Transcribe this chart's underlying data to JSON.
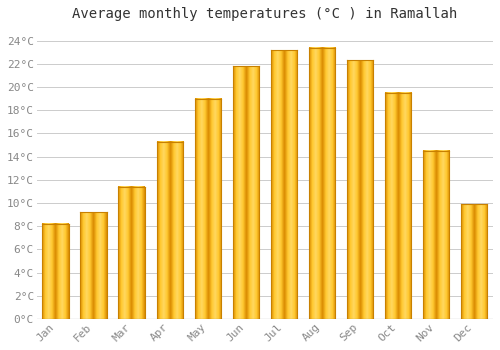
{
  "title": "Average monthly temperatures (°C ) in Ramallah",
  "months": [
    "Jan",
    "Feb",
    "Mar",
    "Apr",
    "May",
    "Jun",
    "Jul",
    "Aug",
    "Sep",
    "Oct",
    "Nov",
    "Dec"
  ],
  "temperatures": [
    8.2,
    9.2,
    11.4,
    15.3,
    19.0,
    21.8,
    23.2,
    23.4,
    22.3,
    19.5,
    14.5,
    9.9
  ],
  "bar_color": "#FFC020",
  "bar_edge_color": "#E8960A",
  "background_color": "#FFFFFF",
  "plot_bg_color": "#FFFFFF",
  "grid_color": "#CCCCCC",
  "ylim": [
    0,
    25
  ],
  "ytick_step": 2,
  "title_fontsize": 10,
  "tick_fontsize": 8,
  "title_font_family": "monospace",
  "tick_font_family": "monospace",
  "tick_color": "#888888",
  "bar_width": 0.7
}
